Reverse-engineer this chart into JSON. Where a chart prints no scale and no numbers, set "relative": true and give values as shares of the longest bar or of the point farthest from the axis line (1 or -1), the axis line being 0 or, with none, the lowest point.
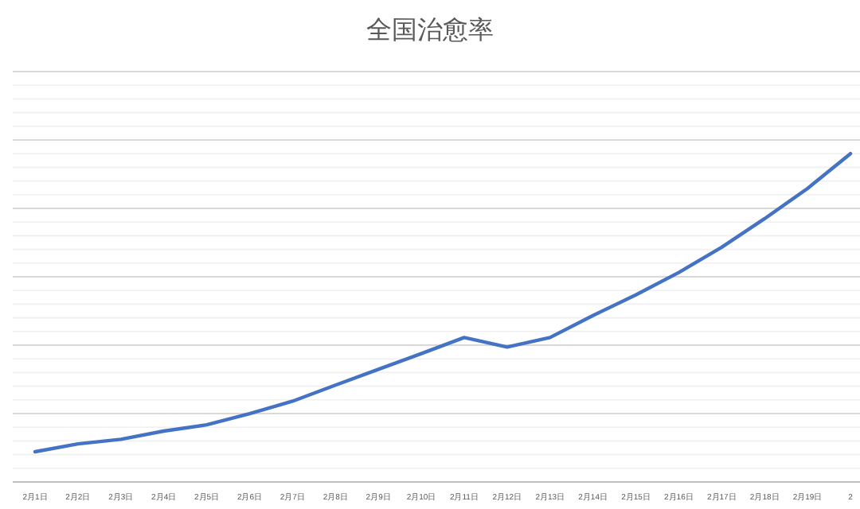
{
  "chart_data": {
    "type": "line",
    "title": "全国治愈率",
    "relative": true,
    "grid": true,
    "categories": [
      "2月1日",
      "2月2日",
      "2月3日",
      "2月4日",
      "2月5日",
      "2月6日",
      "2月7日",
      "2月8日",
      "2月9日",
      "2月10日",
      "2月11日",
      "2月12日",
      "2月13日",
      "2月14日",
      "2月15日",
      "2月16日",
      "2月17日",
      "2月18日",
      "2月19日",
      "2"
    ],
    "series": [
      {
        "color": "#4472c4",
        "values": [
          0.092,
          0.116,
          0.13,
          0.155,
          0.174,
          0.208,
          0.246,
          0.295,
          0.343,
          0.391,
          0.44,
          0.411,
          0.44,
          0.507,
          0.57,
          0.638,
          0.715,
          0.802,
          0.894,
          1
        ]
      }
    ]
  }
}
